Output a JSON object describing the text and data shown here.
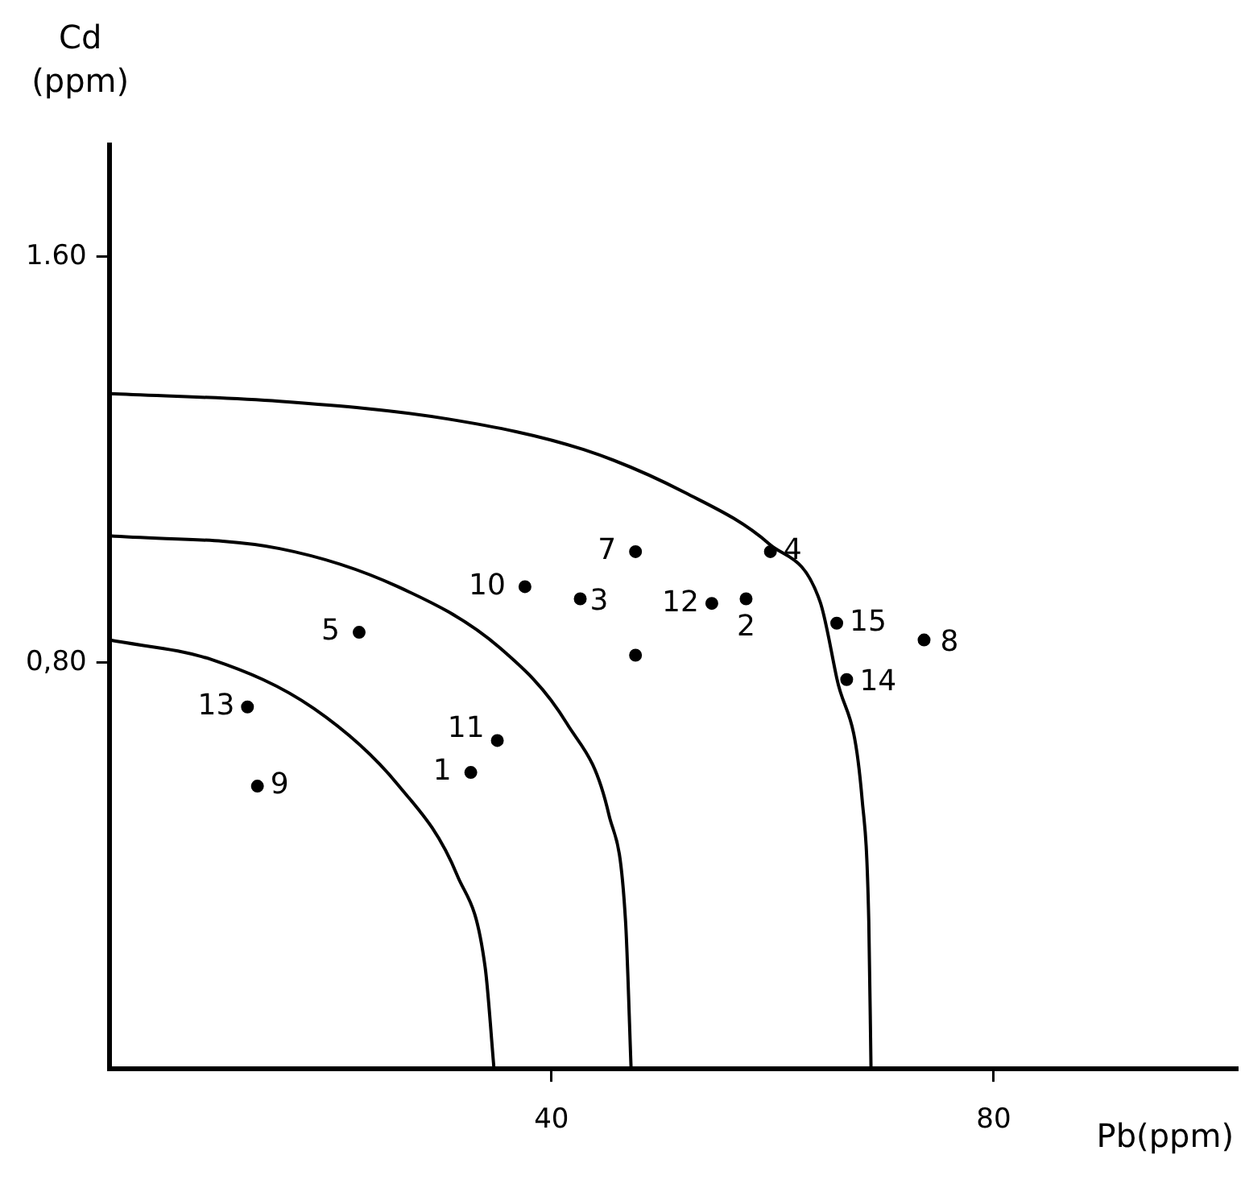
{
  "chart_data": {
    "type": "scatter",
    "xlabel": "Pb(ppm)",
    "ylabel": "Cd\n(ppm)",
    "xlim": [
      0,
      102
    ],
    "ylim": [
      0,
      1.82
    ],
    "xticks": [
      40,
      80
    ],
    "yticks": [
      {
        "value": 1.6,
        "label": "1.60"
      },
      {
        "value": 0.8,
        "label": "0,80"
      }
    ],
    "grid": false,
    "legend": false,
    "marker": "circle",
    "series": [
      {
        "color": "#000000",
        "x": [
          32.7,
          57.6,
          42.6,
          59.8,
          22.6,
          47.6,
          73.7,
          13.4,
          37.6,
          35.1,
          54.5,
          12.5,
          66.7,
          65.8,
          47.6
        ],
        "values": [
          0.584,
          0.926,
          0.926,
          1.019,
          0.86,
          1.019,
          0.845,
          0.557,
          0.95,
          0.647,
          0.917,
          0.713,
          0.767,
          0.878,
          0.815
        ]
      },
      {
        "type": "line",
        "color": "#000000",
        "marker": "none",
        "x": [
          0,
          15.4,
          30.7,
          42.9,
          52.1,
          59.7,
          64.3,
          65.8,
          68.1,
          68.7,
          68.9
        ],
        "values": [
          1.33,
          1.315,
          1.28,
          1.22,
          1.135,
          1.034,
          0.92,
          0.77,
          0.53,
          0.29,
          0
        ]
      },
      {
        "type": "line",
        "color": "#000000",
        "marker": "none",
        "x": [
          0,
          15.4,
          26.1,
          35.3,
          41.4,
          45.2,
          46.7,
          47.2
        ],
        "values": [
          1.05,
          1.025,
          0.95,
          0.83,
          0.68,
          0.5,
          0.29,
          0
        ]
      },
      {
        "type": "line",
        "color": "#000000",
        "marker": "none",
        "x": [
          0,
          9.3,
          18.5,
          26.1,
          31.5,
          34,
          34.8
        ],
        "values": [
          0.845,
          0.806,
          0.71,
          0.56,
          0.38,
          0.2,
          0
        ]
      }
    ],
    "annotations": [
      {
        "text": "1",
        "x": 32.7,
        "y": 0.584
      },
      {
        "text": "2",
        "x": 57.6,
        "y": 0.926
      },
      {
        "text": "3",
        "x": 42.6,
        "y": 0.926
      },
      {
        "text": "4",
        "x": 59.8,
        "y": 1.019
      },
      {
        "text": "5",
        "x": 22.6,
        "y": 0.86
      },
      {
        "text": "7",
        "x": 47.6,
        "y": 1.019
      },
      {
        "text": "8",
        "x": 73.7,
        "y": 0.845
      },
      {
        "text": "9",
        "x": 13.4,
        "y": 0.557
      },
      {
        "text": "10",
        "x": 37.6,
        "y": 0.95
      },
      {
        "text": "11",
        "x": 35.1,
        "y": 0.647
      },
      {
        "text": "12",
        "x": 54.5,
        "y": 0.917
      },
      {
        "text": "13",
        "x": 12.5,
        "y": 0.713
      },
      {
        "text": "14",
        "x": 66.7,
        "y": 0.767
      },
      {
        "text": "15",
        "x": 65.8,
        "y": 0.878
      }
    ]
  }
}
